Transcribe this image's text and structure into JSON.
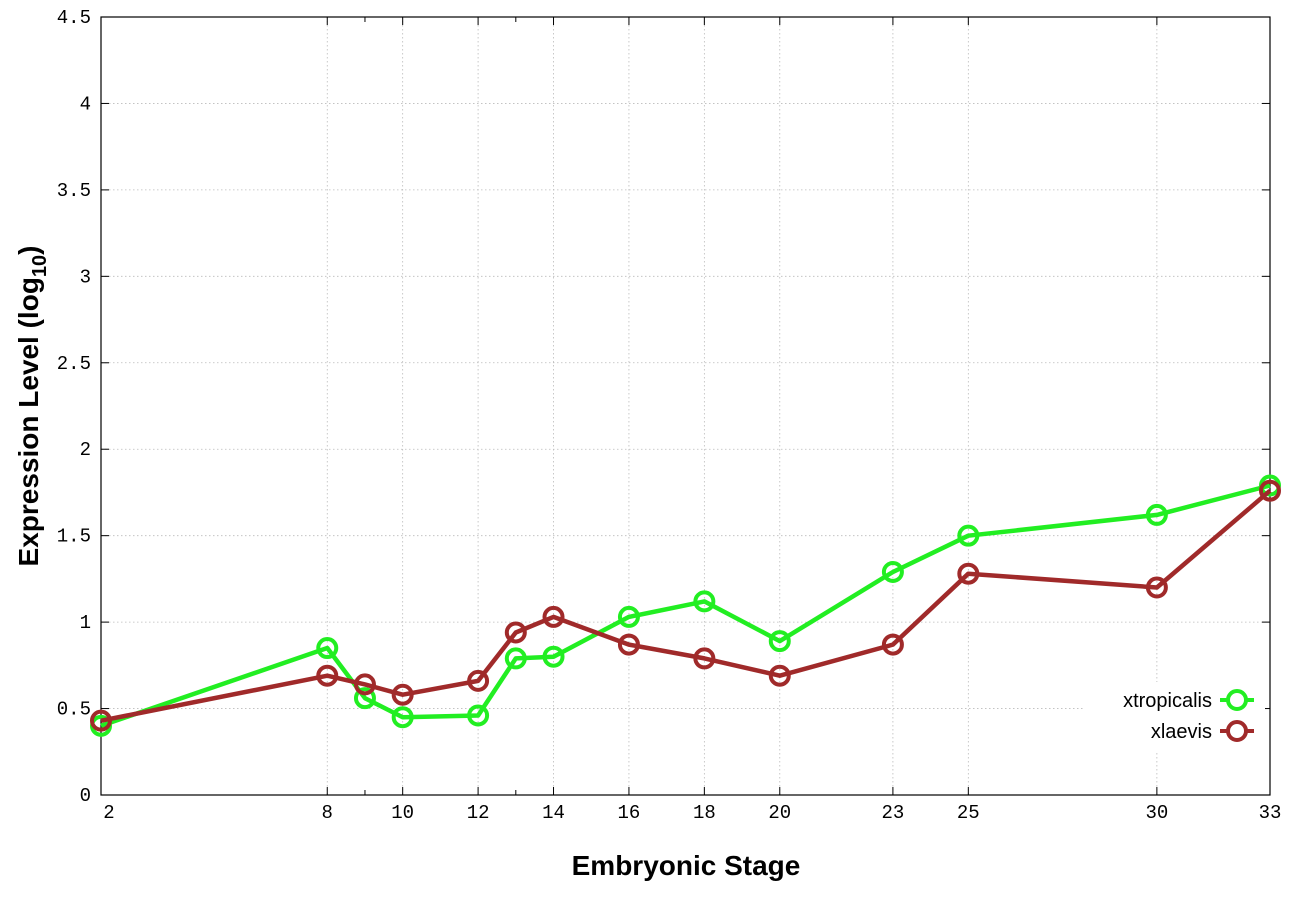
{
  "chart_data": {
    "type": "line",
    "xlabel": "Embryonic Stage",
    "ylabel_main": "Expression Level (log",
    "ylabel_sub": "10",
    "ylabel_close": ")",
    "xlim": [
      2,
      33
    ],
    "ylim": [
      0,
      4.5
    ],
    "x_ticks": [
      2,
      8,
      10,
      12,
      14,
      16,
      18,
      20,
      23,
      25,
      30,
      33
    ],
    "x_minor_ticks": [
      9,
      13
    ],
    "y_ticks": [
      0,
      0.5,
      1,
      1.5,
      2,
      2.5,
      3,
      3.5,
      4,
      4.5
    ],
    "y_tick_labels": [
      "0",
      "0.5",
      "1",
      "1.5",
      "2",
      "2.5",
      "3",
      "3.5",
      "4",
      "4.5"
    ],
    "grid": true,
    "legend_position": "bottom-right",
    "series": [
      {
        "name": "xtropicalis",
        "color": "#22ee22",
        "x": [
          2,
          8,
          9,
          10,
          12,
          13,
          14,
          16,
          18,
          20,
          23,
          25,
          30,
          33
        ],
        "values": [
          0.4,
          0.85,
          0.56,
          0.45,
          0.46,
          0.79,
          0.8,
          1.03,
          1.12,
          0.89,
          1.29,
          1.5,
          1.62,
          1.79
        ]
      },
      {
        "name": "xlaevis",
        "color": "#a02a2a",
        "x": [
          2,
          8,
          9,
          10,
          12,
          13,
          14,
          16,
          18,
          20,
          23,
          25,
          30,
          33
        ],
        "values": [
          0.43,
          0.69,
          0.64,
          0.58,
          0.66,
          0.94,
          1.03,
          0.87,
          0.79,
          0.69,
          0.87,
          1.28,
          1.2,
          1.76
        ]
      }
    ]
  }
}
